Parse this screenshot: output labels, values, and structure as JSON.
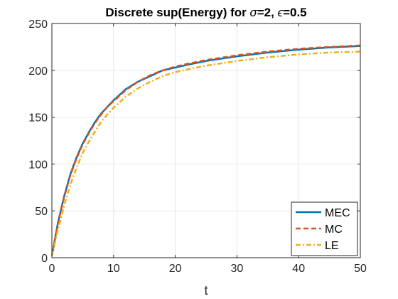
{
  "chart_data": {
    "type": "line",
    "title_prefix": "Discrete sup(Energy) for ",
    "title_sigma": "σ",
    "title_mid": "=2, ",
    "title_epsilon": "ϵ",
    "title_suffix": "=0.5",
    "xlabel": "t",
    "ylabel": "",
    "xlim": [
      0,
      50
    ],
    "ylim": [
      0,
      250
    ],
    "xticks": [
      0,
      10,
      20,
      30,
      40,
      50
    ],
    "yticks": [
      0,
      50,
      100,
      150,
      200,
      250
    ],
    "grid": true,
    "legend_position": "bottom-right",
    "x": [
      0,
      1,
      2,
      3,
      4,
      5,
      6,
      7,
      8,
      9,
      10,
      12,
      14,
      16,
      18,
      20,
      22,
      25,
      28,
      30,
      35,
      40,
      45,
      50
    ],
    "series": [
      {
        "name": "MEC",
        "color": "#0072BD",
        "dash": "solid",
        "values": [
          2,
          38,
          66,
          89,
          107,
          122,
          134,
          145,
          154,
          161,
          168,
          180,
          188,
          194,
          200,
          203,
          206,
          210,
          213,
          215,
          219,
          222,
          224.5,
          226
        ]
      },
      {
        "name": "MC",
        "color": "#D95319",
        "dash": "dashed",
        "values": [
          2,
          37,
          65,
          88,
          106,
          121,
          133,
          144,
          153,
          161,
          167,
          179,
          188,
          195,
          200,
          204,
          207,
          211,
          214,
          216,
          220,
          223,
          225,
          226.5
        ]
      },
      {
        "name": "LE",
        "color": "#EDB120",
        "dash": "dashdot",
        "values": [
          2,
          30,
          56,
          78,
          96,
          112,
          124,
          135,
          145,
          153,
          160,
          172,
          181,
          188,
          194,
          198,
          201,
          205,
          208,
          210,
          214,
          217,
          219,
          220
        ]
      }
    ]
  }
}
